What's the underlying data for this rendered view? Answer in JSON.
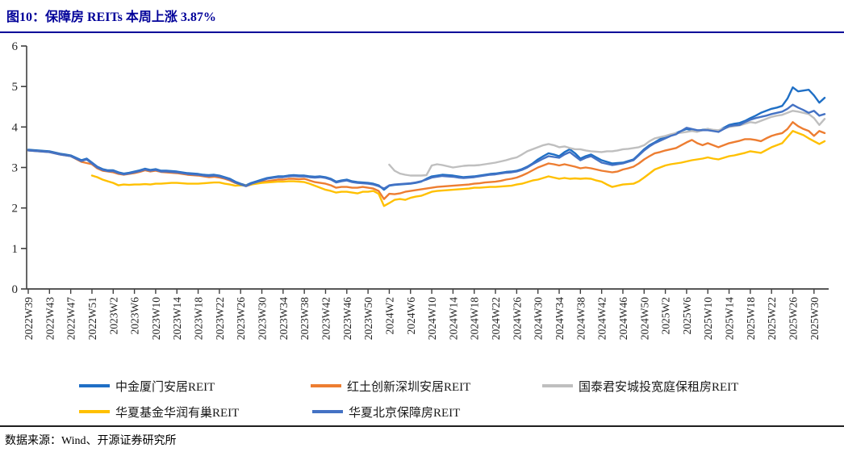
{
  "title": "图10：保障房 REITs 本周上涨 3.87%",
  "footer": {
    "source": "数据来源：Wind、开源证券研究所"
  },
  "colors": {
    "title_accent": "#000099",
    "axis": "#404040",
    "tick_label": "#262626",
    "separator": "#1f1f1f"
  },
  "chart_data": {
    "type": "line",
    "title": "",
    "xlabel": "",
    "ylabel": "",
    "ylim": [
      0,
      6
    ],
    "y_ticks": [
      0,
      1,
      2,
      3,
      4,
      5,
      6
    ],
    "grid": false,
    "legend_position": "bottom",
    "x_unit": "week",
    "n_points": 151,
    "label_every": 4,
    "x_tick_labels": [
      "2022W39",
      "2022W43",
      "2022W47",
      "2022W51",
      "2023W2",
      "2023W6",
      "2023W10",
      "2023W14",
      "2023W18",
      "2023W22",
      "2023W26",
      "2023W30",
      "2023W34",
      "2023W38",
      "2023W42",
      "2023W46",
      "2023W50",
      "2024W2",
      "2024W6",
      "2024W10",
      "2024W14",
      "2024W18",
      "2024W22",
      "2024W26",
      "2024W30",
      "2024W34",
      "2024W38",
      "2024W42",
      "2024W46",
      "2024W50",
      "2025W2",
      "2025W6",
      "2025W10",
      "2025W14",
      "2025W18",
      "2025W22",
      "2025W26",
      "2025W30"
    ],
    "series": [
      {
        "name": "中金厦门安居REIT",
        "color": "#1F6FC5",
        "start_index": 0,
        "values": [
          3.44,
          3.43,
          3.42,
          3.41,
          3.4,
          3.37,
          3.34,
          3.32,
          3.3,
          3.24,
          3.18,
          3.22,
          3.12,
          3.02,
          2.96,
          2.93,
          2.93,
          2.88,
          2.85,
          2.87,
          2.9,
          2.93,
          2.97,
          2.94,
          2.96,
          2.92,
          2.92,
          2.91,
          2.9,
          2.88,
          2.86,
          2.85,
          2.84,
          2.82,
          2.81,
          2.82,
          2.8,
          2.76,
          2.72,
          2.65,
          2.6,
          2.56,
          2.62,
          2.66,
          2.7,
          2.74,
          2.76,
          2.78,
          2.78,
          2.8,
          2.81,
          2.8,
          2.8,
          2.78,
          2.77,
          2.78,
          2.76,
          2.72,
          2.65,
          2.68,
          2.7,
          2.66,
          2.64,
          2.63,
          2.62,
          2.6,
          2.56,
          2.45,
          2.55,
          2.57,
          2.58,
          2.59,
          2.6,
          2.62,
          2.65,
          2.72,
          2.78,
          2.8,
          2.82,
          2.81,
          2.8,
          2.78,
          2.76,
          2.77,
          2.78,
          2.8,
          2.82,
          2.84,
          2.85,
          2.87,
          2.89,
          2.9,
          2.92,
          2.96,
          3.02,
          3.1,
          3.2,
          3.28,
          3.35,
          3.32,
          3.28,
          3.38,
          3.45,
          3.35,
          3.22,
          3.28,
          3.32,
          3.25,
          3.18,
          3.14,
          3.1,
          3.11,
          3.12,
          3.16,
          3.2,
          3.32,
          3.45,
          3.55,
          3.62,
          3.7,
          3.75,
          3.8,
          3.85,
          3.9,
          3.95,
          3.92,
          3.9,
          3.93,
          3.95,
          3.92,
          3.9,
          3.98,
          4.05,
          4.08,
          4.1,
          4.15,
          4.22,
          4.28,
          4.35,
          4.4,
          4.45,
          4.48,
          4.52,
          4.7,
          4.98,
          4.88,
          4.9,
          4.92,
          4.78,
          4.6,
          4.72
        ]
      },
      {
        "name": "红土创新深圳安居REIT",
        "color": "#ED7D31",
        "start_index": 0,
        "values": [
          3.42,
          3.41,
          3.4,
          3.39,
          3.38,
          3.35,
          3.32,
          3.3,
          3.28,
          3.21,
          3.14,
          3.11,
          3.08,
          2.98,
          2.92,
          2.9,
          2.88,
          2.84,
          2.82,
          2.84,
          2.86,
          2.89,
          2.93,
          2.9,
          2.92,
          2.89,
          2.88,
          2.87,
          2.86,
          2.84,
          2.82,
          2.81,
          2.8,
          2.78,
          2.76,
          2.77,
          2.75,
          2.72,
          2.68,
          2.62,
          2.58,
          2.54,
          2.58,
          2.62,
          2.64,
          2.66,
          2.68,
          2.7,
          2.7,
          2.72,
          2.72,
          2.71,
          2.72,
          2.68,
          2.64,
          2.62,
          2.6,
          2.56,
          2.5,
          2.52,
          2.52,
          2.5,
          2.5,
          2.52,
          2.5,
          2.48,
          2.42,
          2.22,
          2.35,
          2.34,
          2.36,
          2.4,
          2.42,
          2.44,
          2.46,
          2.48,
          2.5,
          2.52,
          2.53,
          2.54,
          2.55,
          2.56,
          2.57,
          2.58,
          2.6,
          2.61,
          2.63,
          2.64,
          2.65,
          2.67,
          2.7,
          2.72,
          2.75,
          2.8,
          2.86,
          2.93,
          3.0,
          3.05,
          3.1,
          3.08,
          3.05,
          3.08,
          3.05,
          3.02,
          2.98,
          3.0,
          2.98,
          2.95,
          2.92,
          2.9,
          2.88,
          2.9,
          2.95,
          2.98,
          3.02,
          3.1,
          3.2,
          3.28,
          3.35,
          3.38,
          3.42,
          3.45,
          3.48,
          3.55,
          3.62,
          3.68,
          3.6,
          3.55,
          3.6,
          3.55,
          3.5,
          3.55,
          3.6,
          3.63,
          3.66,
          3.7,
          3.7,
          3.68,
          3.65,
          3.72,
          3.78,
          3.82,
          3.85,
          3.95,
          4.12,
          4.02,
          3.95,
          3.9,
          3.78,
          3.9,
          3.85
        ]
      },
      {
        "name": "国泰君安城投宽庭保租房REIT",
        "color": "#BFBFBF",
        "start_index": 68,
        "values": [
          3.07,
          2.92,
          2.85,
          2.82,
          2.8,
          2.8,
          2.8,
          2.81,
          3.05,
          3.08,
          3.06,
          3.03,
          3.0,
          3.02,
          3.04,
          3.05,
          3.05,
          3.06,
          3.08,
          3.1,
          3.12,
          3.15,
          3.18,
          3.22,
          3.25,
          3.32,
          3.4,
          3.45,
          3.5,
          3.55,
          3.58,
          3.55,
          3.5,
          3.52,
          3.48,
          3.45,
          3.45,
          3.42,
          3.4,
          3.39,
          3.38,
          3.4,
          3.4,
          3.42,
          3.45,
          3.46,
          3.48,
          3.5,
          3.55,
          3.65,
          3.72,
          3.75,
          3.78,
          3.82,
          3.85,
          3.86,
          3.88,
          3.9,
          3.88,
          3.92,
          3.95,
          3.93,
          3.92,
          3.96,
          4.0,
          4.02,
          4.04,
          4.08,
          4.12,
          4.1,
          4.15,
          4.2,
          4.25,
          4.28,
          4.3,
          4.35,
          4.4,
          4.38,
          4.35,
          4.32,
          4.22,
          4.05,
          4.2
        ]
      },
      {
        "name": "华夏基金华润有巢REIT",
        "color": "#FFC000",
        "start_index": 12,
        "values": [
          2.8,
          2.76,
          2.7,
          2.66,
          2.62,
          2.56,
          2.58,
          2.57,
          2.58,
          2.58,
          2.59,
          2.58,
          2.6,
          2.6,
          2.61,
          2.62,
          2.62,
          2.61,
          2.6,
          2.6,
          2.6,
          2.61,
          2.62,
          2.63,
          2.63,
          2.6,
          2.58,
          2.55,
          2.56,
          2.55,
          2.58,
          2.6,
          2.62,
          2.63,
          2.64,
          2.65,
          2.65,
          2.66,
          2.66,
          2.65,
          2.64,
          2.6,
          2.55,
          2.5,
          2.45,
          2.42,
          2.38,
          2.4,
          2.4,
          2.38,
          2.36,
          2.4,
          2.4,
          2.42,
          2.35,
          2.05,
          2.12,
          2.2,
          2.22,
          2.2,
          2.25,
          2.28,
          2.3,
          2.35,
          2.4,
          2.42,
          2.43,
          2.44,
          2.45,
          2.46,
          2.47,
          2.48,
          2.5,
          2.5,
          2.51,
          2.52,
          2.52,
          2.53,
          2.54,
          2.55,
          2.58,
          2.6,
          2.64,
          2.68,
          2.7,
          2.74,
          2.78,
          2.75,
          2.72,
          2.74,
          2.72,
          2.73,
          2.72,
          2.73,
          2.72,
          2.68,
          2.65,
          2.58,
          2.52,
          2.55,
          2.58,
          2.59,
          2.6,
          2.66,
          2.75,
          2.85,
          2.95,
          3.0,
          3.05,
          3.08,
          3.1,
          3.12,
          3.15,
          3.18,
          3.2,
          3.22,
          3.25,
          3.22,
          3.2,
          3.24,
          3.28,
          3.3,
          3.33,
          3.36,
          3.4,
          3.38,
          3.36,
          3.43,
          3.5,
          3.55,
          3.6,
          3.75,
          3.9,
          3.85,
          3.8,
          3.72,
          3.65,
          3.58,
          3.65
        ]
      },
      {
        "name": "华夏北京保障房REIT",
        "color": "#4472C4",
        "start_index": 0,
        "values": [
          3.42,
          3.41,
          3.4,
          3.39,
          3.38,
          3.35,
          3.32,
          3.3,
          3.28,
          3.22,
          3.16,
          3.2,
          3.1,
          3.0,
          2.94,
          2.91,
          2.91,
          2.86,
          2.83,
          2.85,
          2.88,
          2.91,
          2.95,
          2.92,
          2.94,
          2.9,
          2.9,
          2.89,
          2.88,
          2.86,
          2.84,
          2.83,
          2.82,
          2.8,
          2.79,
          2.8,
          2.78,
          2.74,
          2.7,
          2.63,
          2.58,
          2.54,
          2.6,
          2.64,
          2.68,
          2.72,
          2.74,
          2.76,
          2.76,
          2.78,
          2.79,
          2.78,
          2.78,
          2.76,
          2.75,
          2.76,
          2.74,
          2.7,
          2.63,
          2.66,
          2.68,
          2.64,
          2.62,
          2.61,
          2.6,
          2.58,
          2.54,
          2.48,
          2.56,
          2.58,
          2.59,
          2.6,
          2.61,
          2.63,
          2.66,
          2.7,
          2.75,
          2.77,
          2.79,
          2.78,
          2.77,
          2.75,
          2.74,
          2.75,
          2.76,
          2.78,
          2.8,
          2.82,
          2.83,
          2.85,
          2.87,
          2.88,
          2.9,
          2.94,
          3.0,
          3.08,
          3.15,
          3.22,
          3.28,
          3.26,
          3.24,
          3.32,
          3.38,
          3.28,
          3.18,
          3.24,
          3.28,
          3.2,
          3.12,
          3.09,
          3.06,
          3.08,
          3.1,
          3.14,
          3.18,
          3.3,
          3.42,
          3.52,
          3.6,
          3.66,
          3.72,
          3.78,
          3.82,
          3.9,
          3.98,
          3.95,
          3.92,
          3.92,
          3.92,
          3.9,
          3.88,
          3.95,
          4.02,
          4.04,
          4.05,
          4.12,
          4.18,
          4.22,
          4.25,
          4.28,
          4.32,
          4.35,
          4.38,
          4.45,
          4.55,
          4.48,
          4.42,
          4.35,
          4.4,
          4.28,
          4.32
        ]
      }
    ]
  },
  "legend": {
    "order": [
      0,
      1,
      2,
      3,
      4
    ]
  }
}
